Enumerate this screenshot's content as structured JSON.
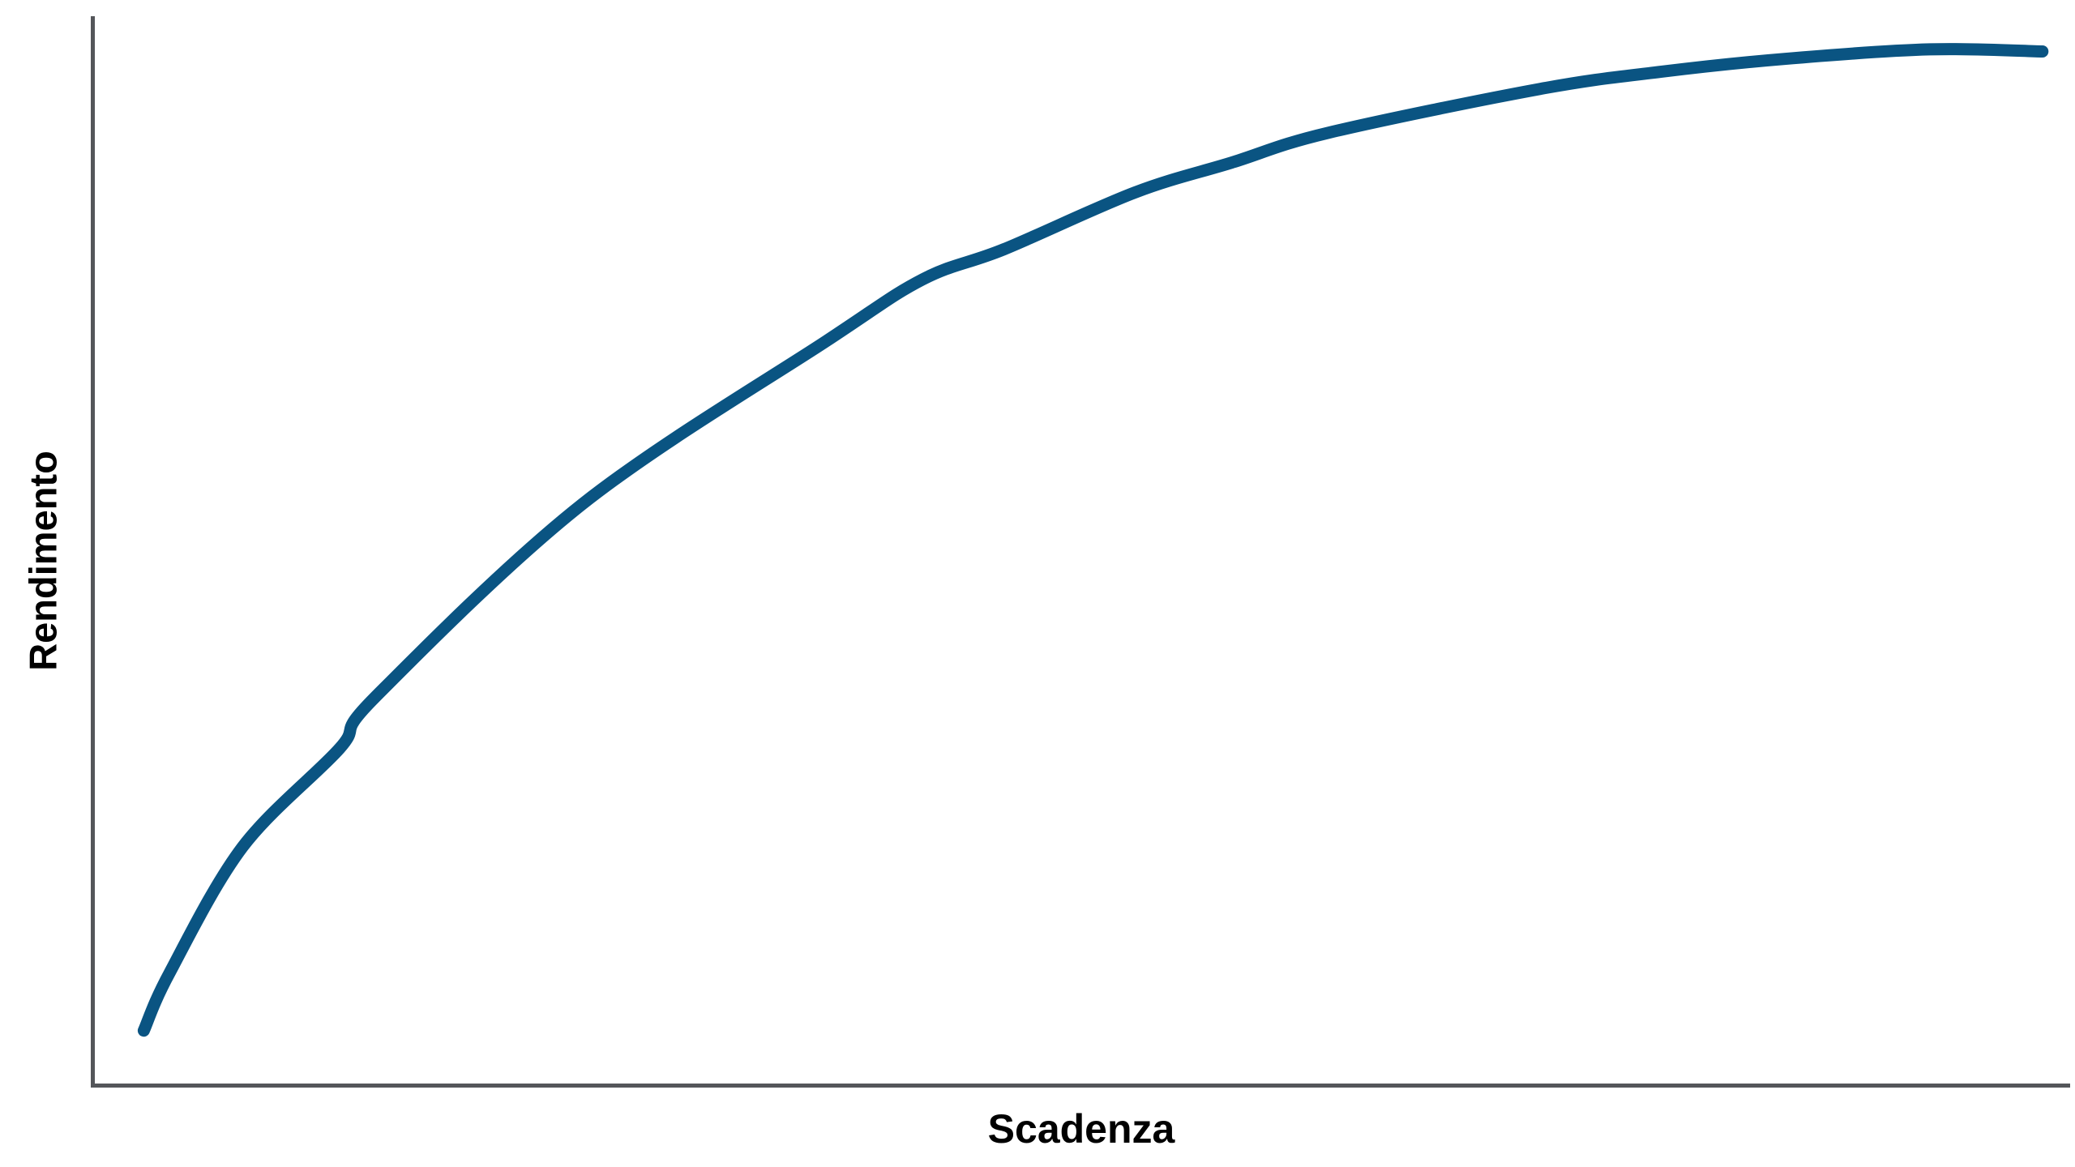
{
  "colors": {
    "curve": "#0A5482",
    "axis": "#54565A",
    "label_text": "#000000",
    "background": "#FFFFFF"
  },
  "chart_data": {
    "type": "line",
    "title": "",
    "xlabel": "Scadenza",
    "ylabel": "Rendimento",
    "x_tick_labels": [],
    "y_tick_labels": [],
    "grid": false,
    "legend_position": "none",
    "xlim": [
      0,
      100
    ],
    "ylim": [
      0,
      100
    ],
    "axes": {
      "x_axis_visible": true,
      "y_axis_visible": true,
      "ticks_visible": false
    },
    "series": [
      {
        "name": "yield-curve",
        "color": "#0A5482",
        "stroke_width_px": 15,
        "linecap": "round",
        "x": [
          2.6,
          3.9,
          7.6,
          12.5,
          14.3,
          24.8,
          37.1,
          42.0,
          46.1,
          52.7,
          57.6,
          62.5,
          73.2,
          79.3,
          85.5,
          92.9,
          98.6
        ],
        "y": [
          5.1,
          10.5,
          22.3,
          31.5,
          36.3,
          54.4,
          69.6,
          75.4,
          78.2,
          83.5,
          86.3,
          89.1,
          93.2,
          94.8,
          96.0,
          96.9,
          96.7
        ]
      }
    ]
  }
}
